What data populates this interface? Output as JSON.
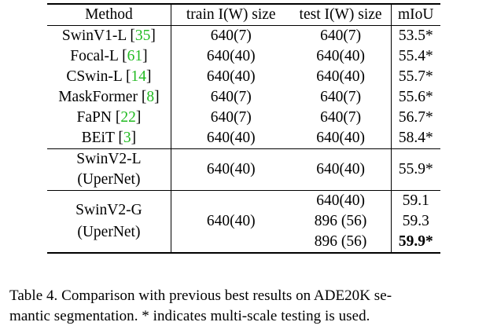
{
  "table": {
    "headers": [
      "Method",
      "train I(W) size",
      "test I(W) size",
      "mIoU"
    ],
    "rows": [
      {
        "method": "SwinV1-L",
        "ref": "35",
        "train": "640(7)",
        "test": "640(7)",
        "miou": "53.5*"
      },
      {
        "method": "Focal-L",
        "ref": "61",
        "train": "640(40)",
        "test": "640(40)",
        "miou": "55.4*"
      },
      {
        "method": "CSwin-L",
        "ref": "14",
        "train": "640(40)",
        "test": "640(40)",
        "miou": "55.7*"
      },
      {
        "method": "MaskFormer",
        "ref": "8",
        "train": "640(7)",
        "test": "640(7)",
        "miou": "55.6*"
      },
      {
        "method": "FaPN",
        "ref": "22",
        "train": "640(7)",
        "test": "640(7)",
        "miou": "56.7*"
      },
      {
        "method": "BEiT",
        "ref": "3",
        "train": "640(40)",
        "test": "640(40)",
        "miou": "58.4*"
      }
    ],
    "swinv2_l": {
      "method_line1": "SwinV2-L",
      "method_line2": "(UperNet)",
      "train": "640(40)",
      "test": "640(40)",
      "miou": "55.9*"
    },
    "swinv2_g": {
      "method_line1": "SwinV2-G",
      "method_line2": "(UperNet)",
      "train": "640(40)",
      "tests": [
        "640(40)",
        "896 (56)",
        "896 (56)"
      ],
      "mious": [
        "59.1",
        "59.3",
        "59.9*"
      ]
    }
  },
  "caption": {
    "line1": "Table 4.  Comparison with previous best results on ADE20K se-",
    "line2": "mantic segmentation. * indicates multi-scale testing is used."
  }
}
